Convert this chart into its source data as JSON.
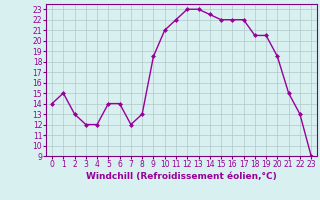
{
  "x": [
    0,
    1,
    2,
    3,
    4,
    5,
    6,
    7,
    8,
    9,
    10,
    11,
    12,
    13,
    14,
    15,
    16,
    17,
    18,
    19,
    20,
    21,
    22,
    23
  ],
  "y": [
    14,
    15,
    13,
    12,
    12,
    14,
    14,
    12,
    13,
    18.5,
    21,
    22,
    23,
    23,
    22.5,
    22,
    22,
    22,
    20.5,
    20.5,
    18.5,
    15,
    13,
    9
  ],
  "line_color": "#990099",
  "marker": "D",
  "marker_size": 2,
  "linewidth": 1,
  "xlabel": "Windchill (Refroidissement éolien,°C)",
  "xlabel_fontsize": 6.5,
  "xlim": [
    -0.5,
    23.5
  ],
  "ylim": [
    9,
    23.5
  ],
  "yticks": [
    9,
    10,
    11,
    12,
    13,
    14,
    15,
    16,
    17,
    18,
    19,
    20,
    21,
    22,
    23
  ],
  "xticks": [
    0,
    1,
    2,
    3,
    4,
    5,
    6,
    7,
    8,
    9,
    10,
    11,
    12,
    13,
    14,
    15,
    16,
    17,
    18,
    19,
    20,
    21,
    22,
    23
  ],
  "tick_fontsize": 5.5,
  "background_color": "#d8f0f0",
  "grid_color": "#b0c8c8",
  "line_color_spine": "#800080"
}
